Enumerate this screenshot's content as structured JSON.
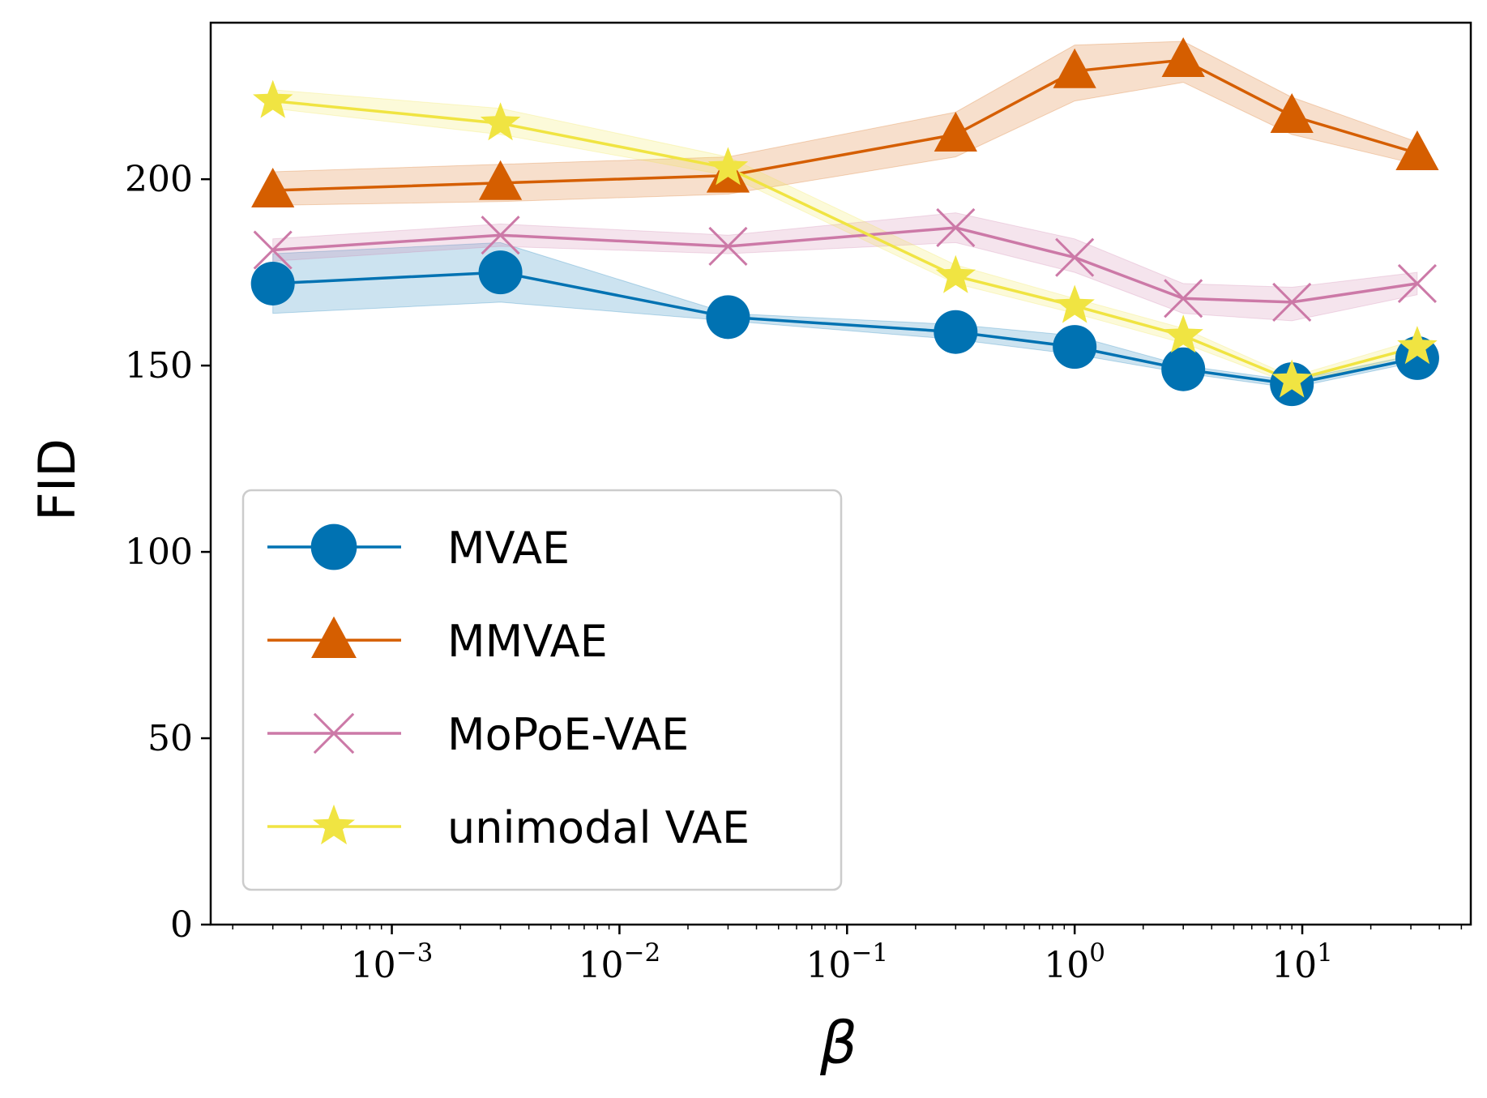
{
  "chart_data": {
    "type": "line",
    "title": "",
    "xlabel": "β",
    "ylabel": "FID",
    "xscale": "log",
    "xlim": [
      0.00016,
      55
    ],
    "ylim": [
      0,
      242
    ],
    "grid": false,
    "legend_position": "lower-left",
    "x": [
      0.0003,
      0.003,
      0.03,
      0.3,
      1,
      3,
      9,
      32
    ],
    "y_ticks": [
      0,
      50,
      100,
      150,
      200
    ],
    "y_tick_labels": [
      "0",
      "50",
      "100",
      "150",
      "200"
    ],
    "x_ticks": [
      0.001,
      0.01,
      0.1,
      1,
      10
    ],
    "x_tick_labels": [
      {
        "base": "10",
        "exp": "−3"
      },
      {
        "base": "10",
        "exp": "−2"
      },
      {
        "base": "10",
        "exp": "−1"
      },
      {
        "base": "10",
        "exp": "0"
      },
      {
        "base": "10",
        "exp": "1"
      }
    ],
    "series": [
      {
        "name": "MVAE",
        "color": "#0072b2",
        "marker": "circle",
        "values": [
          172,
          175,
          163,
          159,
          155,
          149,
          145,
          152
        ],
        "lower": [
          164,
          167,
          162,
          157,
          153,
          148,
          144,
          151
        ],
        "upper": [
          180,
          183,
          164,
          161,
          158,
          150,
          146,
          153
        ]
      },
      {
        "name": "MMVAE",
        "color": "#d55e00",
        "marker": "triangle",
        "values": [
          197,
          199,
          201,
          212,
          229,
          232,
          217,
          207
        ],
        "lower": [
          193,
          194,
          196,
          206,
          221,
          226,
          212,
          204
        ],
        "upper": [
          202,
          204,
          206,
          218,
          236,
          237,
          222,
          210
        ]
      },
      {
        "name": "MoPoE-VAE",
        "color": "#cc79a7",
        "marker": "x",
        "values": [
          181,
          185,
          182,
          187,
          179,
          168,
          167,
          172
        ],
        "lower": [
          178,
          182,
          180,
          183,
          175,
          164,
          162,
          169
        ],
        "upper": [
          184,
          188,
          185,
          191,
          184,
          172,
          171,
          175
        ]
      },
      {
        "name": "unimodal VAE",
        "color": "#f0e442",
        "marker": "star",
        "values": [
          221,
          215,
          203,
          174,
          166,
          158,
          146,
          155
        ],
        "lower": [
          219,
          212,
          201,
          172,
          164,
          156,
          145,
          153
        ],
        "upper": [
          224,
          219,
          206,
          177,
          168,
          160,
          147,
          157
        ]
      }
    ]
  }
}
